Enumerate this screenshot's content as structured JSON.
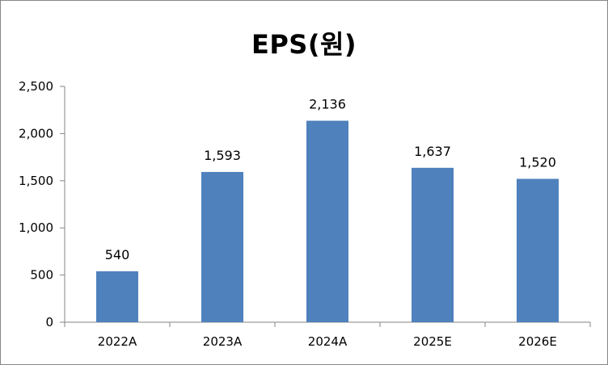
{
  "chart_data": {
    "type": "bar",
    "title": "EPS(원)",
    "xlabel": "",
    "ylabel": "",
    "categories": [
      "2022A",
      "2023A",
      "2024A",
      "2025E",
      "2026E"
    ],
    "values": [
      540,
      1593,
      2136,
      1637,
      1520
    ],
    "data_labels": [
      "540",
      "1,593",
      "2,136",
      "1,637",
      "1,520"
    ],
    "ylim": [
      0,
      2500
    ],
    "yticks": [
      0,
      500,
      1000,
      1500,
      2000,
      2500
    ],
    "ytick_labels": [
      "0",
      "500",
      "1,000",
      "1,500",
      "2,000",
      "2,500"
    ],
    "grid": false,
    "legend": "none",
    "bar_color": "#4F81BD",
    "axis_color": "#868686"
  }
}
